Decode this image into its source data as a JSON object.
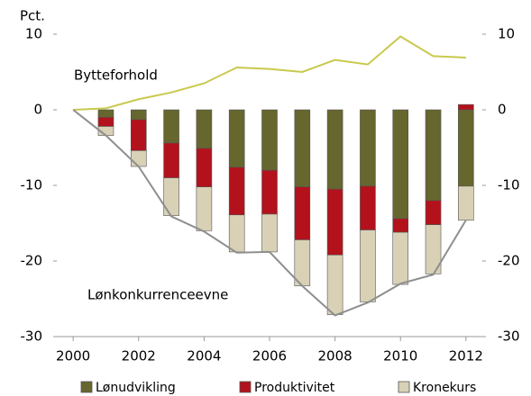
{
  "chart_data": {
    "type": "bar",
    "unit_label": "Pct.",
    "x": [
      2001,
      2002,
      2003,
      2004,
      2005,
      2006,
      2007,
      2008,
      2009,
      2010,
      2011,
      2012
    ],
    "series": [
      {
        "name": "Lønudvikling",
        "type": "bar",
        "color": "#66662f",
        "values": [
          -1.0,
          -1.3,
          -4.4,
          -5.1,
          -7.6,
          -8.0,
          -10.2,
          -10.5,
          -10.1,
          -14.4,
          -12.0,
          -10.1
        ]
      },
      {
        "name": "Produktivitet",
        "type": "bar",
        "color": "#b3121c",
        "values": [
          -1.2,
          -4.1,
          -4.6,
          -5.1,
          -6.3,
          -5.8,
          -7.0,
          -8.7,
          -5.8,
          -1.8,
          -3.2,
          0.7
        ]
      },
      {
        "name": "Kronekurs",
        "type": "bar",
        "color": "#d8d1b6",
        "values": [
          -1.2,
          -2.1,
          -5.0,
          -5.8,
          -4.9,
          -5.0,
          -6.1,
          -7.9,
          -9.5,
          -6.9,
          -6.5,
          -4.5
        ]
      },
      {
        "name": "Bytteforhold",
        "type": "line",
        "color": "#c9c94e",
        "x": [
          2000,
          2001,
          2002,
          2003,
          2004,
          2005,
          2006,
          2007,
          2008,
          2009,
          2010,
          2011,
          2012
        ],
        "values": [
          0,
          0.2,
          1.4,
          2.3,
          3.5,
          5.6,
          5.4,
          5.0,
          6.6,
          6.0,
          9.7,
          7.1,
          6.9
        ]
      },
      {
        "name": "Lønkonkurrenceevne",
        "type": "line",
        "color": "#8e8e8e",
        "x": [
          2000,
          2001,
          2002,
          2003,
          2004,
          2005,
          2006,
          2007,
          2008,
          2009,
          2010,
          2011,
          2012
        ],
        "values": [
          0,
          -3.4,
          -7.5,
          -14.1,
          -16.1,
          -18.9,
          -18.8,
          -23.3,
          -27.2,
          -25.5,
          -23.0,
          -21.8,
          -14.6
        ]
      }
    ],
    "xlim": [
      1999.5,
      2012.5
    ],
    "xticks": [
      2000,
      2002,
      2004,
      2006,
      2008,
      2010,
      2012
    ],
    "ylim": [
      -30,
      10
    ],
    "yticks": [
      -30,
      -20,
      -10,
      0,
      10
    ],
    "y2lim": [
      -30,
      10
    ],
    "y2ticks": [
      -30,
      -20,
      -10,
      0,
      10
    ],
    "grid": false,
    "legend": "bottom"
  }
}
